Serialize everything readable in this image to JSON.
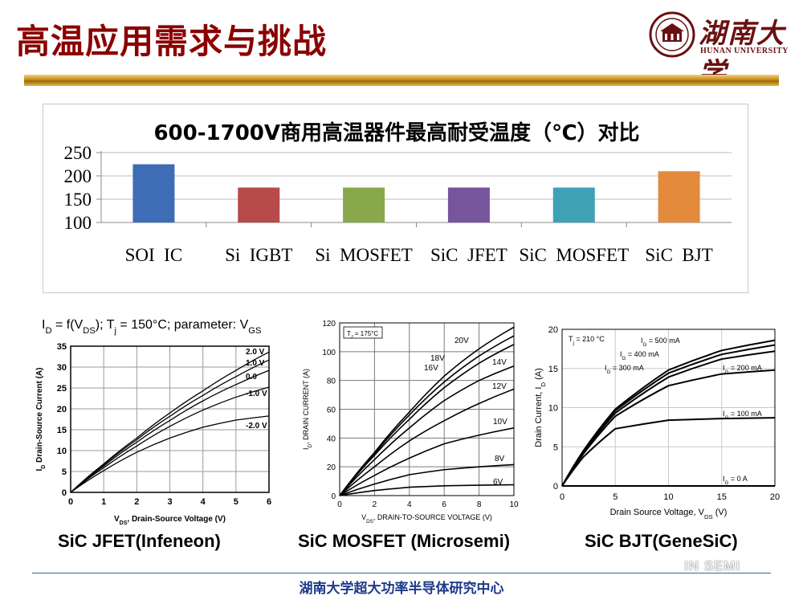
{
  "slide": {
    "title": "高温应用需求与挑战",
    "footer": "湖南大学超大功率半导体研究中心",
    "watermark": "IN SEMI"
  },
  "logo": {
    "name_cn": "湖南大学",
    "name_en": "HUNAN UNIVERSITY"
  },
  "colors": {
    "title": "#8b0000",
    "header_bar": "#c68a14",
    "footer": "#1e3a8a"
  },
  "chart_data": [
    {
      "type": "bar",
      "title": "600-1700V商用高温器件最高耐受温度（℃）对比",
      "categories": [
        "SOI IC",
        "Si IGBT",
        "Si MOSFET",
        "SiC JFET",
        "SiC MOSFET",
        "SiC BJT"
      ],
      "category_lines": [
        [
          "SOI",
          "IC"
        ],
        [
          "Si",
          "IGBT"
        ],
        [
          "Si",
          "MOSFET"
        ],
        [
          "SiC",
          "JFET"
        ],
        [
          "SiC",
          "MOSFET"
        ],
        [
          "SiC",
          "BJT"
        ]
      ],
      "values": [
        225,
        175,
        175,
        175,
        175,
        210
      ],
      "bar_colors": [
        "#3e6db5",
        "#b84a4a",
        "#88a84a",
        "#76559c",
        "#3fa1b6",
        "#e38a3c"
      ],
      "ylim": [
        100,
        250
      ],
      "yticks": [
        100,
        150,
        200,
        250
      ],
      "grid": true
    },
    {
      "type": "line",
      "title": "I_D = f(V_DS); T_j = 150°C; parameter: V_GS",
      "xlabel": "V_DS, Drain-Source Voltage (V)",
      "ylabel": "I_D Drain-Source Current (A)",
      "xlim": [
        0,
        6
      ],
      "ylim": [
        0,
        35
      ],
      "xticks": [
        0,
        1,
        2,
        3,
        4,
        5,
        6
      ],
      "yticks": [
        0,
        5,
        10,
        15,
        20,
        25,
        30,
        35
      ],
      "caption": "SiC JFET(Infeneon)",
      "series": [
        {
          "name": "2.0 V",
          "x": [
            0,
            1,
            2,
            3,
            4,
            5,
            6
          ],
          "y": [
            0,
            6.8,
            13.0,
            19.0,
            24.3,
            29.2,
            33.6
          ]
        },
        {
          "name": "1.0 V",
          "x": [
            0,
            1,
            2,
            3,
            4,
            5,
            6
          ],
          "y": [
            0,
            6.6,
            12.6,
            18.2,
            23.2,
            27.7,
            31.7
          ]
        },
        {
          "name": "0.0",
          "x": [
            0,
            1,
            2,
            3,
            4,
            5,
            6
          ],
          "y": [
            0,
            6.3,
            12.0,
            17.2,
            21.9,
            25.8,
            29.2
          ]
        },
        {
          "name": "-1.0 V",
          "x": [
            0,
            1,
            2,
            3,
            4,
            5,
            6
          ],
          "y": [
            0,
            5.9,
            11.1,
            15.8,
            19.7,
            22.8,
            25.2
          ]
        },
        {
          "name": "-2.0 V",
          "x": [
            0,
            1,
            2,
            3,
            4,
            5,
            6
          ],
          "y": [
            0,
            5.2,
            9.6,
            13.0,
            15.6,
            17.3,
            18.3
          ]
        }
      ]
    },
    {
      "type": "line",
      "title": "T_J = 175°C",
      "xlabel": "V_DS, DRAIN-TO-SOURCE VOLTAGE (V)",
      "ylabel": "I_D, DRAIN CURRENT (A)",
      "xlim": [
        0,
        10
      ],
      "ylim": [
        0,
        120
      ],
      "xticks": [
        0,
        2,
        4,
        6,
        8,
        10
      ],
      "yticks": [
        0,
        20,
        40,
        60,
        80,
        100,
        120
      ],
      "caption": "SiC MOSFET (Microsemi)",
      "series": [
        {
          "name": "20V",
          "x": [
            0,
            2,
            4,
            6,
            8,
            10
          ],
          "y": [
            0,
            30,
            58,
            83,
            102,
            117
          ]
        },
        {
          "name": "18V",
          "x": [
            0,
            2,
            4,
            6,
            8,
            10
          ],
          "y": [
            0,
            29,
            56,
            79,
            97,
            111
          ]
        },
        {
          "name": "16V",
          "x": [
            0,
            2,
            4,
            6,
            8,
            10
          ],
          "y": [
            0,
            28,
            53,
            75,
            92,
            105
          ]
        },
        {
          "name": "14V",
          "x": [
            0,
            2,
            4,
            6,
            8,
            10
          ],
          "y": [
            0,
            25,
            47,
            66,
            80,
            90
          ]
        },
        {
          "name": "12V",
          "x": [
            0,
            2,
            4,
            6,
            8,
            10
          ],
          "y": [
            0,
            20,
            38,
            52,
            64,
            74
          ]
        },
        {
          "name": "10V",
          "x": [
            0,
            2,
            4,
            6,
            8,
            10
          ],
          "y": [
            0,
            14,
            26,
            36,
            42,
            47
          ]
        },
        {
          "name": "8V",
          "x": [
            0,
            2,
            4,
            6,
            8,
            10
          ],
          "y": [
            0,
            8,
            14.5,
            18,
            20,
            21.5
          ]
        },
        {
          "name": "6V",
          "x": [
            0,
            2,
            4,
            6,
            8,
            10
          ],
          "y": [
            0,
            3.5,
            5.8,
            6.8,
            7.2,
            7.5
          ]
        }
      ]
    },
    {
      "type": "line",
      "title": "T_j = 210 °C",
      "xlabel": "Drain Source Voltage, V_DS (V)",
      "ylabel": "Drain Current, I_D (A)",
      "xlim": [
        0,
        20
      ],
      "ylim": [
        0,
        20
      ],
      "xticks": [
        0,
        5,
        10,
        15,
        20
      ],
      "yticks": [
        0,
        5,
        10,
        15,
        20
      ],
      "caption": "SiC BJT(GeneSiC)",
      "series": [
        {
          "name": "I_G = 500 mA",
          "x": [
            0,
            2,
            5,
            10,
            15,
            20
          ],
          "y": [
            0,
            4.5,
            9.8,
            14.8,
            17.3,
            18.6
          ]
        },
        {
          "name": "I_G = 400 mA",
          "x": [
            0,
            2,
            5,
            10,
            15,
            20
          ],
          "y": [
            0,
            4.4,
            9.6,
            14.4,
            16.8,
            18.0
          ]
        },
        {
          "name": "I_G = 300 mA",
          "x": [
            0,
            2,
            5,
            10,
            15,
            20
          ],
          "y": [
            0,
            4.3,
            9.3,
            13.9,
            16.2,
            17.2
          ]
        },
        {
          "name": "I_G = 200 mA",
          "x": [
            0,
            2,
            5,
            10,
            15,
            20
          ],
          "y": [
            0,
            4.1,
            8.9,
            12.8,
            14.3,
            14.8
          ]
        },
        {
          "name": "I_G = 100 mA",
          "x": [
            0,
            2,
            5,
            10,
            15,
            20
          ],
          "y": [
            0,
            3.7,
            7.3,
            8.4,
            8.6,
            8.7
          ]
        },
        {
          "name": "I_G = 0 A",
          "x": [
            0,
            5,
            10,
            15,
            20
          ],
          "y": [
            0,
            0,
            0,
            0,
            0
          ]
        }
      ]
    }
  ]
}
